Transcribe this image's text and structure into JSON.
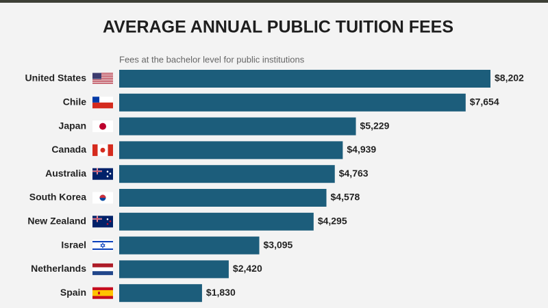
{
  "chart_data": {
    "type": "bar",
    "orientation": "horizontal",
    "title": "AVERAGE ANNUAL PUBLIC TUITION FEES",
    "subtitle": "Fees at the bachelor level for public institutions",
    "categories": [
      "United States",
      "Chile",
      "Japan",
      "Canada",
      "Australia",
      "South Korea",
      "New Zealand",
      "Israel",
      "Netherlands",
      "Spain"
    ],
    "values": [
      8202,
      7654,
      5229,
      4939,
      4763,
      4578,
      4295,
      3095,
      2420,
      1830
    ],
    "value_labels": [
      "$8,202",
      "$7,654",
      "$5,229",
      "$4,939",
      "$4,763",
      "$4,578",
      "$4,295",
      "$3,095",
      "$2,420",
      "$1,830"
    ],
    "color": "#1c5d7b"
  }
}
